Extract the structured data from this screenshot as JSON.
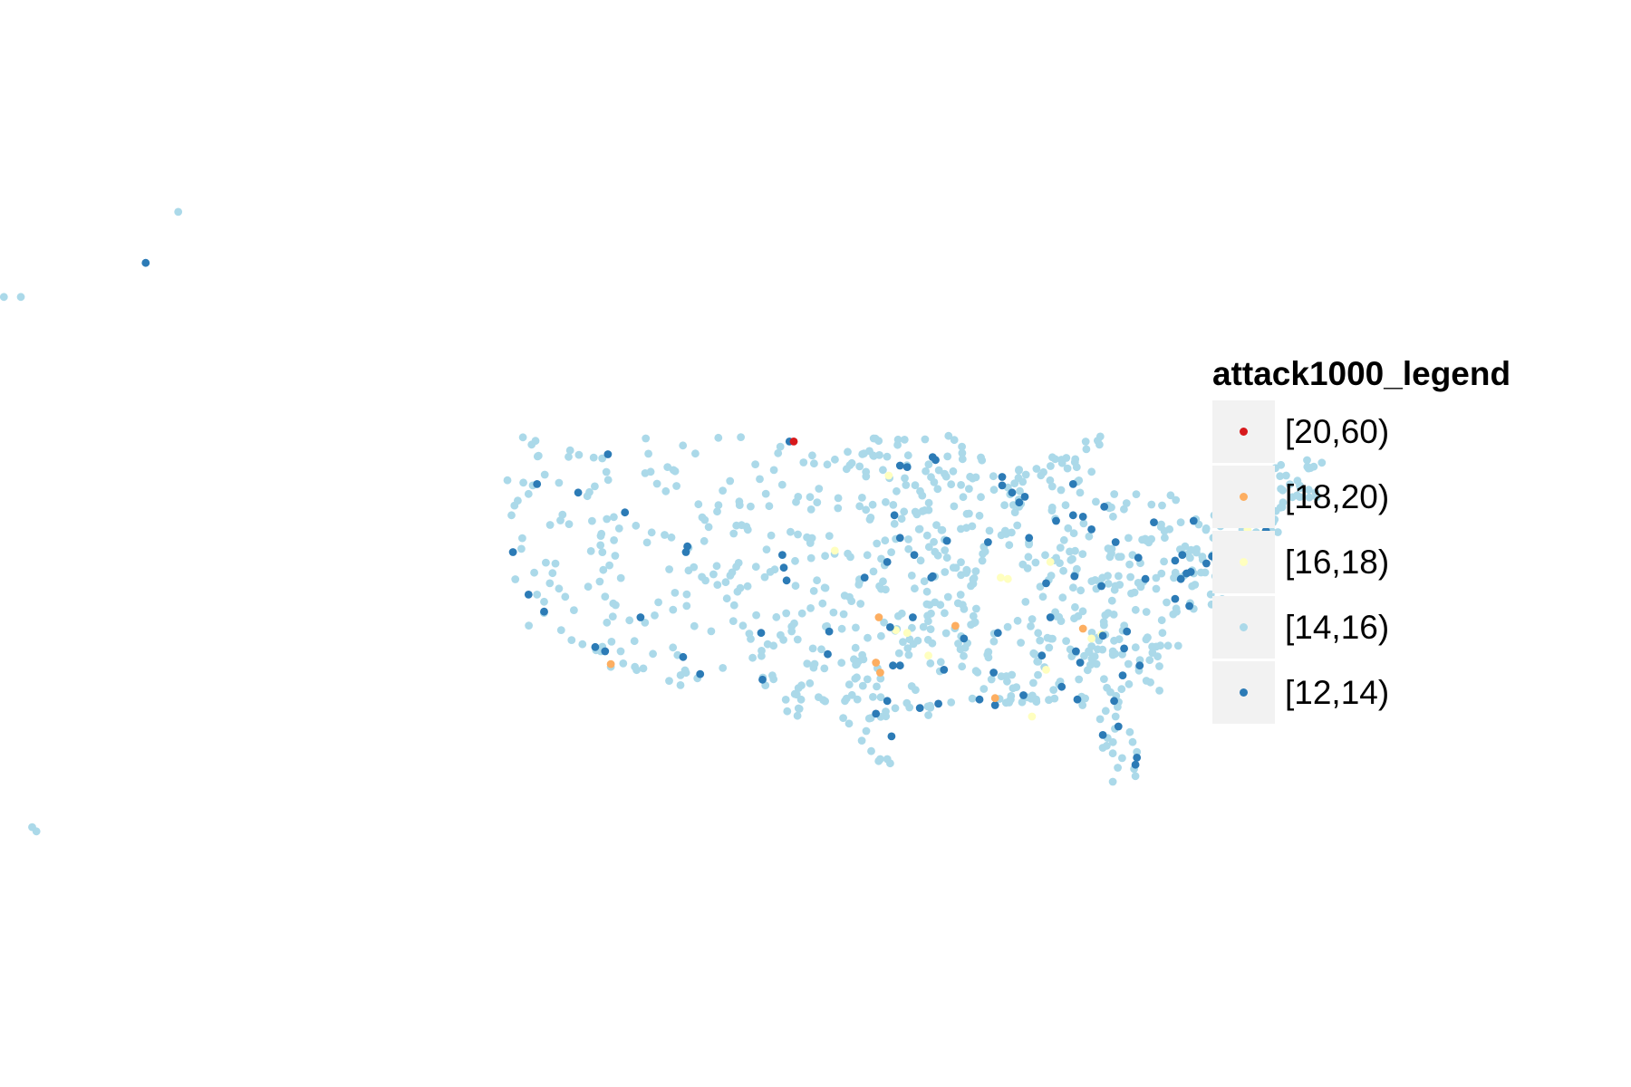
{
  "legend": {
    "title": "attack1000_legend",
    "items": [
      {
        "label": "[20,60)",
        "color": "#d7191c"
      },
      {
        "label": "[18,20)",
        "color": "#fdae61"
      },
      {
        "label": "[16,18)",
        "color": "#ffffbf"
      },
      {
        "label": "[14,16)",
        "color": "#abd9e9"
      },
      {
        "label": "[12,14)",
        "color": "#2c7bb6"
      }
    ]
  },
  "chart_data": {
    "type": "scatter",
    "title": "",
    "xlabel": "",
    "ylabel": "",
    "grid": false,
    "legend_position": "right",
    "x_unit": "longitude",
    "y_unit": "latitude",
    "xlim": [
      -178,
      -66
    ],
    "ylim": [
      18,
      72
    ],
    "background_points_class": "[14,16)",
    "series": [
      {
        "name": "[20,60)",
        "points": [
          [
            -104.3,
            48.6
          ]
        ]
      },
      {
        "name": "[18,20)",
        "points": [
          [
            -117.2,
            32.9
          ],
          [
            -98.3,
            36.2
          ],
          [
            -98.5,
            33.0
          ],
          [
            -98.2,
            32.3
          ],
          [
            -92.9,
            35.6
          ],
          [
            -83.9,
            35.4
          ],
          [
            -90.1,
            30.5
          ]
        ]
      },
      {
        "name": "[16,18)",
        "points": [
          [
            -97.6,
            46.2
          ],
          [
            -101.4,
            40.9
          ],
          [
            -97.1,
            35.3
          ],
          [
            -96.3,
            35.1
          ],
          [
            -89.7,
            39.0
          ],
          [
            -89.2,
            38.9
          ],
          [
            -94.8,
            33.5
          ],
          [
            -86.5,
            32.5
          ],
          [
            -87.5,
            29.2
          ],
          [
            -83.3,
            34.7
          ],
          [
            -82.6,
            35.0
          ],
          [
            -72.3,
            42.4
          ],
          [
            -71.2,
            42.1
          ],
          [
            -86.2,
            40.1
          ]
        ]
      },
      {
        "name": "[12,14)",
        "points": [
          [
            -150.0,
            61.2
          ],
          [
            -122.4,
            45.6
          ],
          [
            -117.4,
            47.7
          ],
          [
            -119.5,
            45.0
          ],
          [
            -124.1,
            40.8
          ],
          [
            -123.0,
            37.8
          ],
          [
            -121.9,
            36.6
          ],
          [
            -118.3,
            34.1
          ],
          [
            -117.6,
            33.8
          ],
          [
            -104.6,
            48.6
          ],
          [
            -96.8,
            46.9
          ],
          [
            -96.3,
            46.8
          ],
          [
            -94.5,
            47.5
          ],
          [
            -94.3,
            47.3
          ],
          [
            -89.6,
            46.1
          ],
          [
            -89.6,
            45.5
          ],
          [
            -88.9,
            45.0
          ],
          [
            -88.0,
            44.7
          ],
          [
            -88.4,
            44.3
          ],
          [
            -84.6,
            45.6
          ],
          [
            -85.8,
            43.0
          ],
          [
            -83.9,
            43.3
          ],
          [
            -82.4,
            44.0
          ],
          [
            -84.6,
            43.4
          ],
          [
            -83.3,
            42.4
          ],
          [
            -97.2,
            43.4
          ],
          [
            -96.8,
            41.8
          ],
          [
            -95.8,
            40.6
          ],
          [
            -97.7,
            40.1
          ],
          [
            -99.3,
            39.0
          ],
          [
            -93.5,
            41.6
          ],
          [
            -90.6,
            41.5
          ],
          [
            -87.7,
            41.8
          ],
          [
            -86.5,
            38.6
          ],
          [
            -86.2,
            36.2
          ],
          [
            -84.5,
            39.1
          ],
          [
            -81.6,
            41.5
          ],
          [
            -80.0,
            40.4
          ],
          [
            -79.5,
            38.9
          ],
          [
            -82.6,
            38.4
          ],
          [
            -77.4,
            40.2
          ],
          [
            -76.9,
            40.6
          ],
          [
            -75.2,
            40.0
          ],
          [
            -74.8,
            40.5
          ],
          [
            -74.2,
            40.7
          ],
          [
            -73.9,
            40.9
          ],
          [
            -73.2,
            41.0
          ],
          [
            -72.8,
            41.4
          ],
          [
            -71.4,
            41.8
          ],
          [
            -71.0,
            42.3
          ],
          [
            -71.3,
            43.0
          ],
          [
            -72.6,
            44.4
          ],
          [
            -73.6,
            43.3
          ],
          [
            -76.1,
            43.0
          ],
          [
            -78.9,
            42.9
          ],
          [
            -77.0,
            38.9
          ],
          [
            -76.3,
            39.4
          ],
          [
            -76.6,
            39.3
          ],
          [
            -77.4,
            37.5
          ],
          [
            -76.4,
            37.0
          ],
          [
            -80.8,
            35.2
          ],
          [
            -84.4,
            33.8
          ],
          [
            -84.1,
            33.0
          ],
          [
            -82.5,
            34.9
          ],
          [
            -81.0,
            34.0
          ],
          [
            -79.9,
            32.8
          ],
          [
            -81.1,
            32.1
          ],
          [
            -86.8,
            33.5
          ],
          [
            -89.9,
            35.1
          ],
          [
            -88.1,
            30.7
          ],
          [
            -90.2,
            32.3
          ],
          [
            -85.4,
            31.3
          ],
          [
            -84.3,
            30.4
          ],
          [
            -81.7,
            30.3
          ],
          [
            -82.5,
            27.9
          ],
          [
            -81.4,
            28.5
          ],
          [
            -80.2,
            25.8
          ],
          [
            -80.1,
            26.3
          ],
          [
            -91.2,
            30.4
          ],
          [
            -90.1,
            30.0
          ],
          [
            -93.7,
            32.5
          ],
          [
            -94.1,
            30.1
          ],
          [
            -95.4,
            29.8
          ],
          [
            -97.4,
            27.8
          ],
          [
            -96.8,
            32.8
          ],
          [
            -97.3,
            32.8
          ],
          [
            -97.7,
            30.3
          ],
          [
            -98.5,
            29.4
          ],
          [
            -101.9,
            33.6
          ],
          [
            -101.8,
            35.2
          ],
          [
            -97.5,
            35.5
          ],
          [
            -95.9,
            36.2
          ],
          [
            -94.5,
            39.1
          ],
          [
            -94.6,
            39.0
          ],
          [
            -92.3,
            34.7
          ],
          [
            -106.6,
            35.1
          ],
          [
            -106.5,
            31.8
          ],
          [
            -104.8,
            38.8
          ],
          [
            -105.0,
            39.7
          ],
          [
            -105.1,
            40.6
          ],
          [
            -111.9,
            40.8
          ],
          [
            -111.8,
            41.2
          ],
          [
            -112.1,
            33.4
          ],
          [
            -110.9,
            32.2
          ],
          [
            -115.1,
            36.2
          ],
          [
            -116.2,
            43.6
          ]
        ]
      }
    ]
  }
}
